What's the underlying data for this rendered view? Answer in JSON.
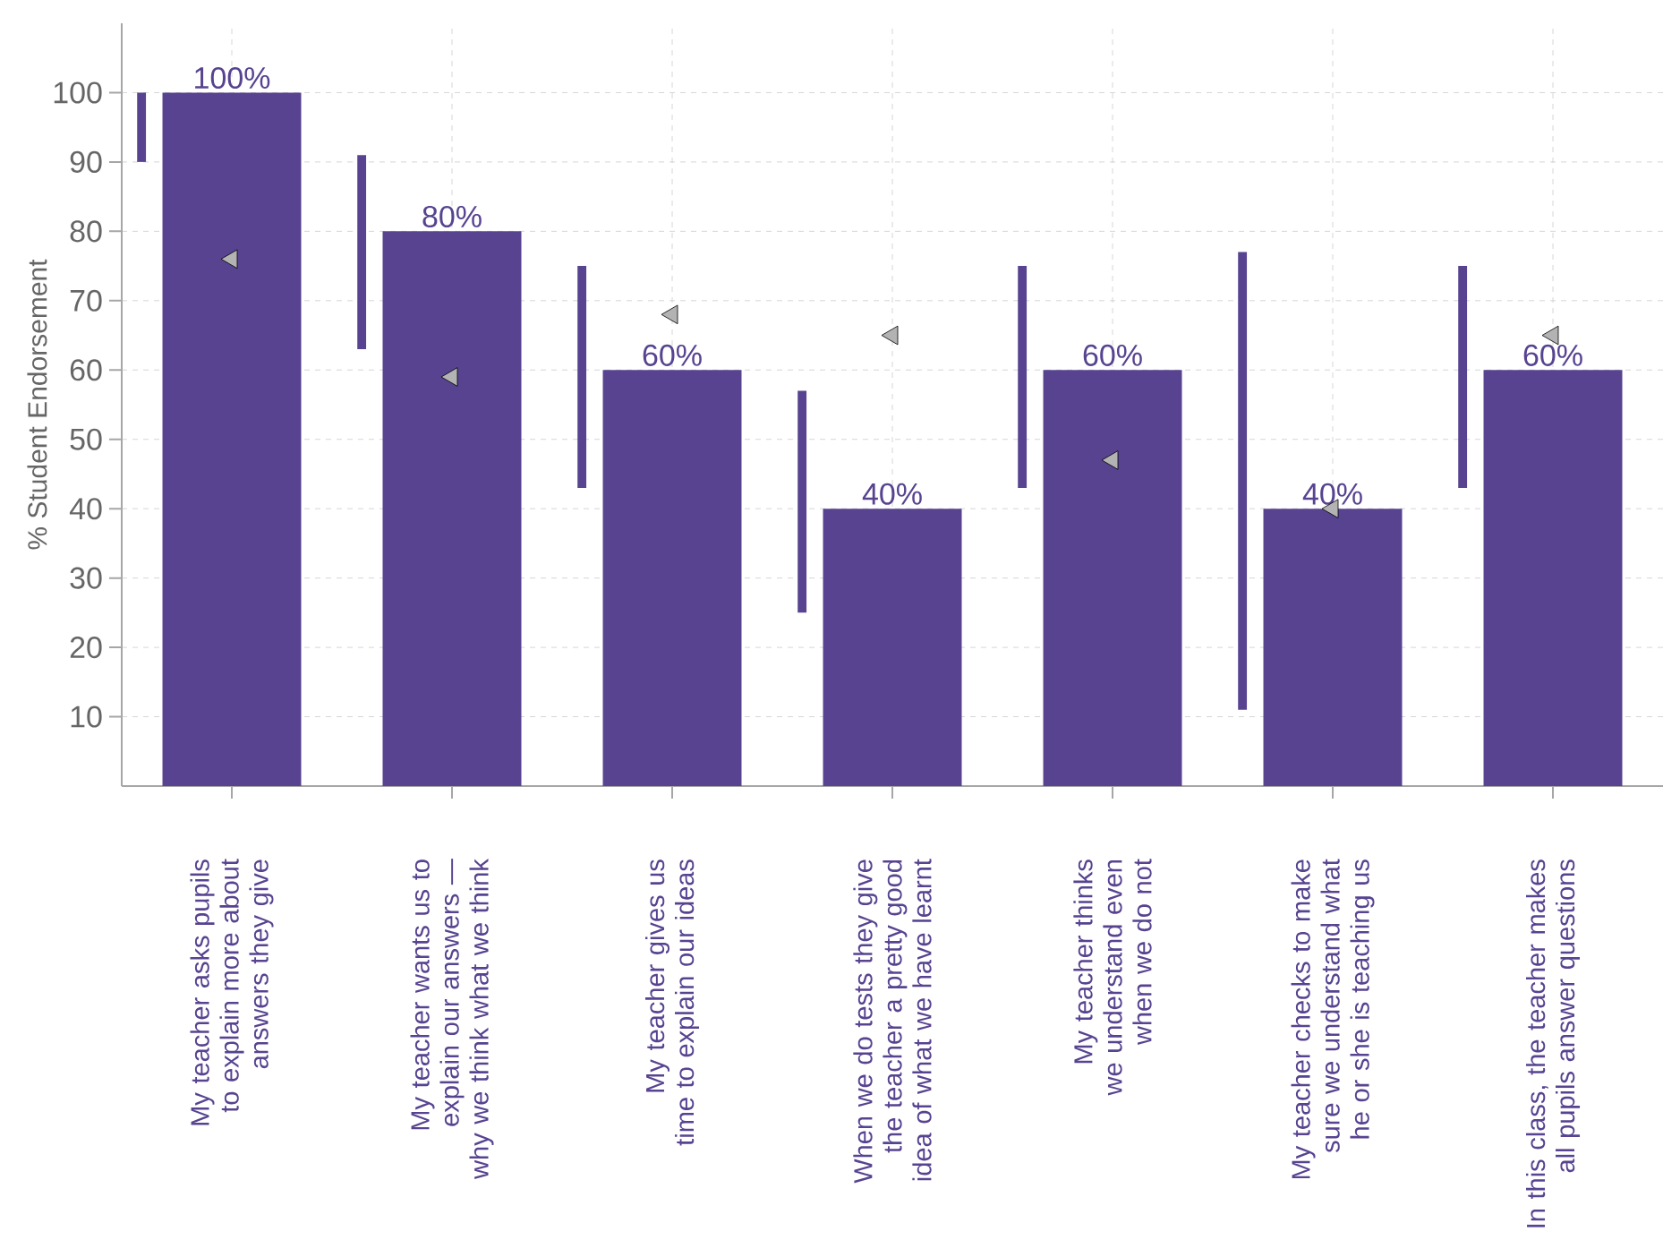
{
  "chart_data": {
    "type": "bar",
    "ylabel": "% Student Endorsement",
    "categories": [
      "My teacher asks pupils to explain more about answers they give",
      "My teacher wants us to explain our answers — why we think what we think",
      "My teacher gives us time to explain our ideas",
      "When we do tests they give the teacher a pretty good idea of what we have learnt",
      "My teacher thinks we understand even when we do not",
      "My teacher checks to make sure we understand what he or she is teaching us",
      "In this class, the teacher makes all pupils answer questions"
    ],
    "series": [
      {
        "color": "#574390",
        "base": [
          90,
          63,
          43,
          25,
          43,
          11,
          43
        ],
        "values": [
          10,
          28,
          32,
          32,
          32,
          66,
          32
        ]
      },
      {
        "color": "#574390",
        "values": [
          100,
          80,
          60,
          40,
          60,
          40,
          60
        ],
        "value_labels": [
          "100%",
          "80%",
          "60%",
          "40%",
          "60%",
          "40%",
          "60%"
        ]
      },
      {
        "type": "scatter",
        "color": "#b3b3b3",
        "x": [
          "My teacher asks pupils to explain more about answers they give",
          "My teacher wants us to explain our answers — why we think what we think",
          "My teacher gives us time to explain our ideas",
          "When we do tests they give the teacher a pretty good idea of what we have learnt",
          "My teacher thinks we understand even when we do not",
          "My teacher checks to make sure we understand what he or she is teaching us",
          "In this class, the teacher makes all pupils answer questions"
        ],
        "values": [
          76,
          59,
          68,
          65,
          47,
          40,
          65
        ]
      }
    ],
    "marker": "triangle",
    "ylim": [
      0,
      110
    ],
    "yticks": [
      10,
      20,
      30,
      40,
      50,
      60,
      70,
      80,
      90,
      100
    ],
    "grid": true
  }
}
